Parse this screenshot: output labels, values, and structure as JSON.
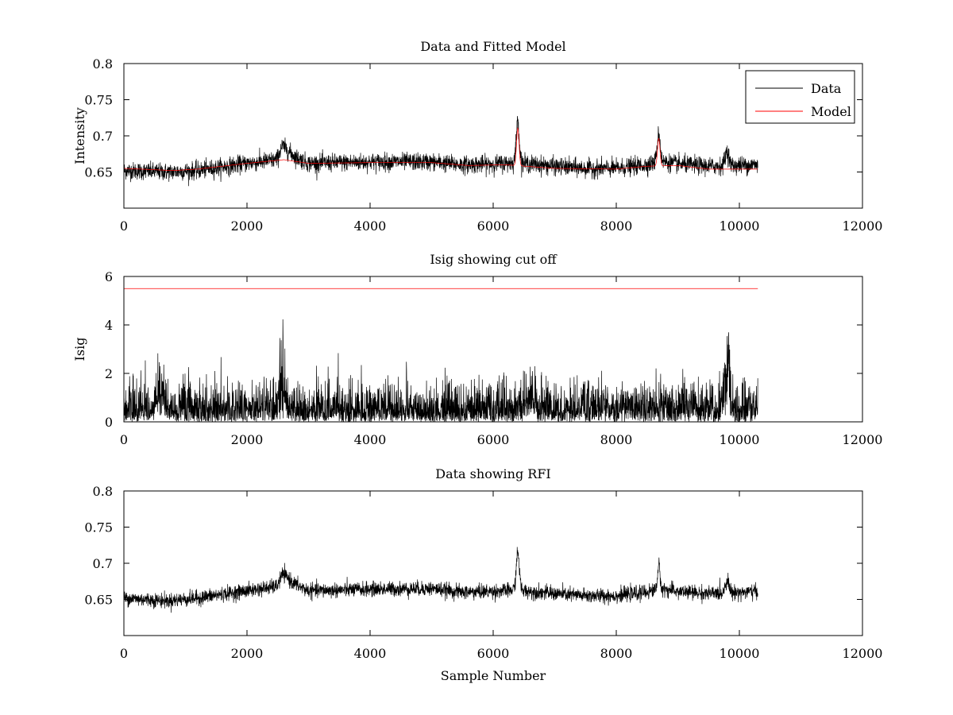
{
  "figure": {
    "background": "#ffffff"
  },
  "chart_data": [
    {
      "type": "line",
      "title": "Data and Fitted Model",
      "xlabel": "",
      "ylabel": "Intensity",
      "xlim": [
        0,
        12000
      ],
      "ylim": [
        0.6,
        0.8
      ],
      "xticks": [
        0,
        2000,
        4000,
        6000,
        8000,
        10000,
        12000
      ],
      "yticks": [
        0.65,
        0.7,
        0.75,
        0.8
      ],
      "ytick_labels": [
        "0.65",
        "0.7",
        "0.75",
        "0.8"
      ],
      "grid": false,
      "legend": {
        "position": "top-right",
        "entries": [
          "Data",
          "Model"
        ]
      },
      "series": [
        {
          "name": "Data",
          "color": "#000000",
          "kind": "noisy",
          "x_range": [
            0,
            10300
          ],
          "noise": 0.006,
          "baseline": [
            [
              0,
              0.652
            ],
            [
              700,
              0.65
            ],
            [
              1200,
              0.652
            ],
            [
              2000,
              0.662
            ],
            [
              2500,
              0.667
            ],
            [
              2650,
              0.68
            ],
            [
              2800,
              0.67
            ],
            [
              3000,
              0.662
            ],
            [
              4000,
              0.664
            ],
            [
              5000,
              0.664
            ],
            [
              5500,
              0.66
            ],
            [
              6000,
              0.661
            ],
            [
              6350,
              0.663
            ],
            [
              6500,
              0.662
            ],
            [
              7000,
              0.658
            ],
            [
              7500,
              0.655
            ],
            [
              8000,
              0.655
            ],
            [
              8500,
              0.66
            ],
            [
              8700,
              0.665
            ],
            [
              9000,
              0.661
            ],
            [
              9500,
              0.658
            ],
            [
              10300,
              0.66
            ]
          ],
          "peaks": [
            [
              6400,
              0.058,
              25
            ],
            [
              8690,
              0.038,
              25
            ],
            [
              9800,
              0.02,
              30
            ],
            [
              2570,
              0.012,
              40
            ]
          ]
        },
        {
          "name": "Model",
          "color": "#ff0000",
          "kind": "smooth",
          "x_range": [
            0,
            10300
          ],
          "baseline": [
            [
              0,
              0.655
            ],
            [
              800,
              0.652
            ],
            [
              1200,
              0.654
            ],
            [
              2000,
              0.662
            ],
            [
              2600,
              0.667
            ],
            [
              3000,
              0.662
            ],
            [
              4000,
              0.663
            ],
            [
              5000,
              0.663
            ],
            [
              5600,
              0.659
            ],
            [
              6200,
              0.66
            ],
            [
              7000,
              0.655
            ],
            [
              8000,
              0.654
            ],
            [
              8500,
              0.658
            ],
            [
              9000,
              0.659
            ],
            [
              9500,
              0.654
            ],
            [
              10300,
              0.654
            ]
          ],
          "peaks": [
            [
              6400,
              0.052,
              20
            ],
            [
              8690,
              0.038,
              20
            ]
          ]
        }
      ]
    },
    {
      "type": "line",
      "title": "Isig showing cut off",
      "xlabel": "",
      "ylabel": "Isig",
      "xlim": [
        0,
        12000
      ],
      "ylim": [
        0,
        6
      ],
      "xticks": [
        0,
        2000,
        4000,
        6000,
        8000,
        10000,
        12000
      ],
      "yticks": [
        0,
        2,
        4,
        6
      ],
      "ytick_labels": [
        "0",
        "2",
        "4",
        "6"
      ],
      "grid": false,
      "legend": null,
      "series": [
        {
          "color": "#000000",
          "kind": "abs-noise",
          "x_range": [
            0,
            10300
          ],
          "scale": 0.75,
          "peaks": [
            [
              2570,
              3.0,
              40
            ],
            [
              9800,
              3.8,
              35
            ],
            [
              600,
              1.3,
              80
            ],
            [
              6600,
              1.2,
              50
            ]
          ]
        },
        {
          "color": "#ff0000",
          "kind": "constant",
          "x_range": [
            0,
            10300
          ],
          "value": 5.5
        }
      ]
    },
    {
      "type": "line",
      "title": "Data showing RFI",
      "xlabel": "Sample Number",
      "ylabel": "",
      "xlim": [
        0,
        12000
      ],
      "ylim": [
        0.6,
        0.8
      ],
      "xticks": [
        0,
        2000,
        4000,
        6000,
        8000,
        10000,
        12000
      ],
      "yticks": [
        0.65,
        0.7,
        0.75,
        0.8
      ],
      "ytick_labels": [
        "0.65",
        "0.7",
        "0.75",
        "0.8"
      ],
      "grid": false,
      "legend": null,
      "series": [
        {
          "color": "#000000",
          "kind": "noisy",
          "x_range": [
            0,
            10300
          ],
          "noise": 0.005,
          "baseline": [
            [
              0,
              0.652
            ],
            [
              700,
              0.648
            ],
            [
              1200,
              0.652
            ],
            [
              2000,
              0.662
            ],
            [
              2500,
              0.668
            ],
            [
              2650,
              0.68
            ],
            [
              2800,
              0.67
            ],
            [
              3000,
              0.662
            ],
            [
              4000,
              0.664
            ],
            [
              5000,
              0.665
            ],
            [
              5500,
              0.66
            ],
            [
              6000,
              0.661
            ],
            [
              6350,
              0.663
            ],
            [
              6500,
              0.662
            ],
            [
              7000,
              0.658
            ],
            [
              7500,
              0.655
            ],
            [
              8000,
              0.655
            ],
            [
              8500,
              0.66
            ],
            [
              8700,
              0.665
            ],
            [
              9000,
              0.661
            ],
            [
              9500,
              0.658
            ],
            [
              10300,
              0.661
            ]
          ],
          "peaks": [
            [
              6400,
              0.052,
              25
            ],
            [
              8690,
              0.032,
              20
            ],
            [
              9800,
              0.018,
              30
            ],
            [
              2570,
              0.01,
              40
            ]
          ]
        }
      ]
    }
  ]
}
